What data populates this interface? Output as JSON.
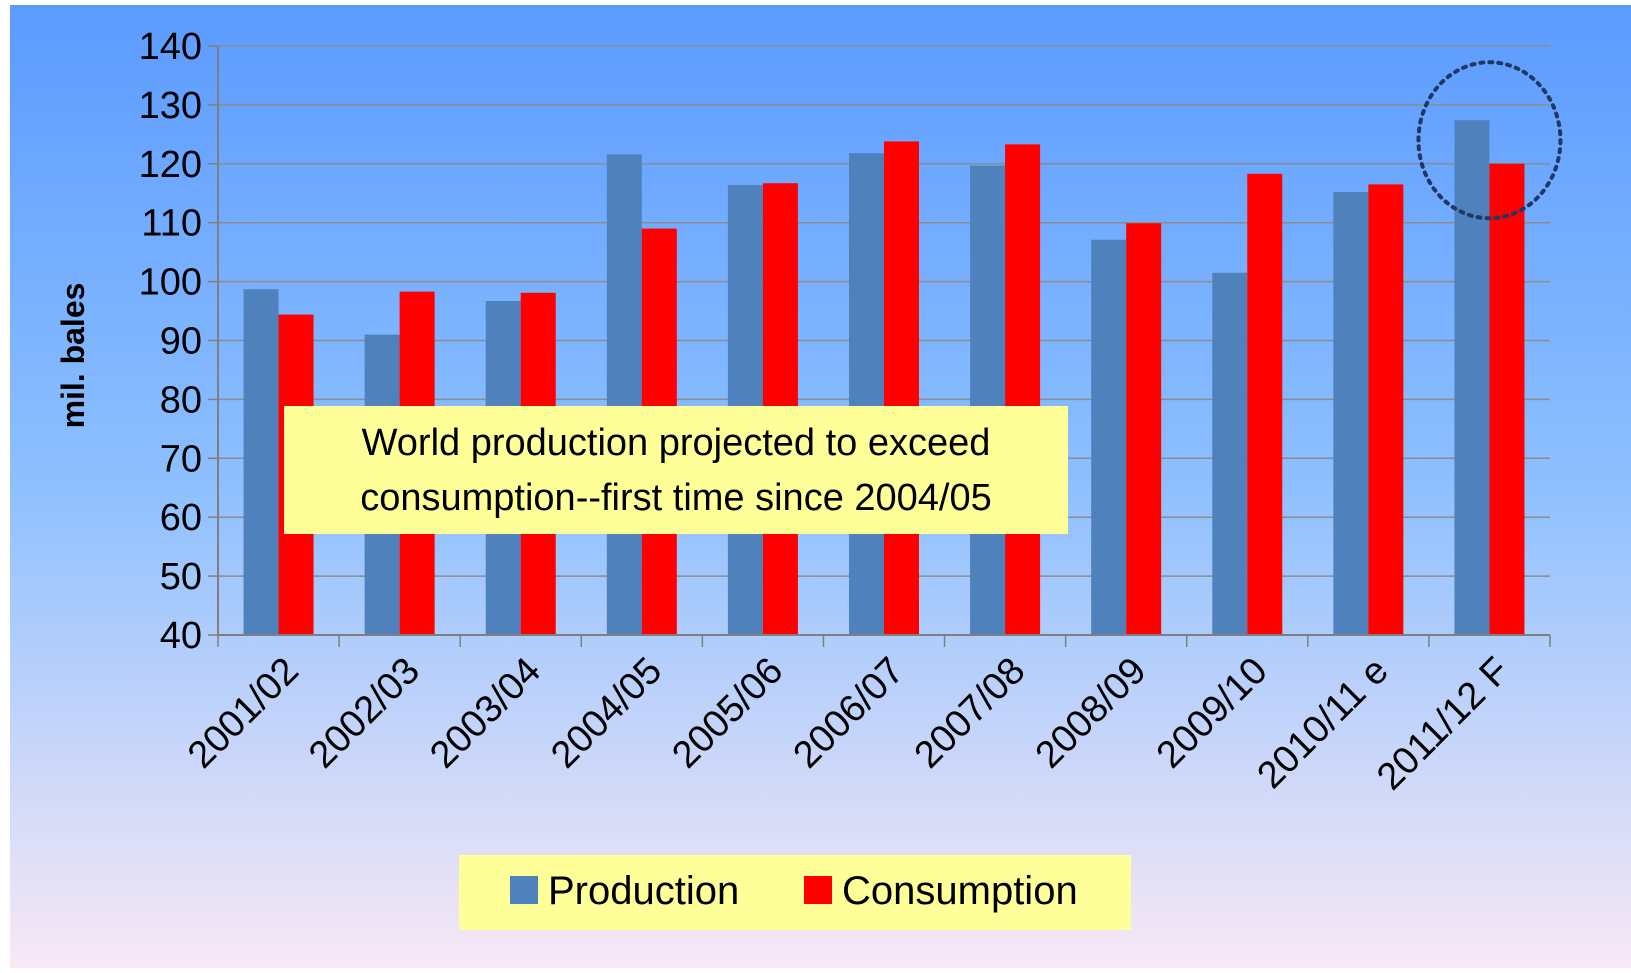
{
  "chart_data": {
    "type": "bar",
    "categories": [
      "2001/02",
      "2002/03",
      "2003/04",
      "2004/05",
      "2005/06",
      "2006/07",
      "2007/08",
      "2008/09",
      "2009/10",
      "2010/11 e",
      "2011/12 F"
    ],
    "series": [
      {
        "name": "Production",
        "color": "#4f81bd",
        "values": [
          98.7,
          91.0,
          96.7,
          121.6,
          116.4,
          121.8,
          119.7,
          107.1,
          101.5,
          115.2,
          127.4
        ]
      },
      {
        "name": "Consumption",
        "color": "#ff0000",
        "values": [
          94.4,
          98.3,
          98.1,
          109.0,
          116.7,
          123.8,
          123.3,
          109.9,
          118.3,
          116.5,
          120.0
        ]
      }
    ],
    "ylabel": "mil. bales",
    "xlabel": "",
    "ylim": [
      40,
      140
    ],
    "yticks": [
      40,
      50,
      60,
      70,
      80,
      90,
      100,
      110,
      120,
      130,
      140
    ],
    "grid": true,
    "legend_position": "bottom",
    "annotation": {
      "line1": "World production projected to exceed",
      "line2": "consumption--first time since 2004/05"
    },
    "highlight_category": "2011/12 F"
  },
  "colors": {
    "background_top": "#5b9bff",
    "background_bottom": "#f8e8f5",
    "annotation_fill": "#ffff99",
    "highlight_circle": "#1f3864"
  }
}
